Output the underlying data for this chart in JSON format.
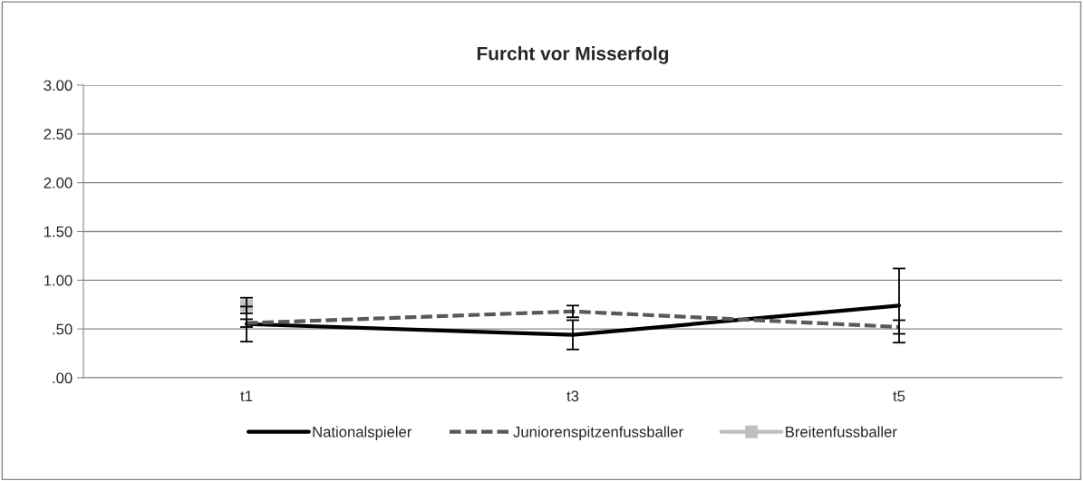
{
  "chart_data": {
    "type": "line",
    "title": "Furcht vor Misserfolg",
    "categories": [
      "t1",
      "t3",
      "t5"
    ],
    "series": [
      {
        "name": "Nationalspieler",
        "color": "#000000",
        "line_style": "solid",
        "marker": "none",
        "values": [
          0.55,
          0.44,
          0.74
        ],
        "errors": [
          0.18,
          0.15,
          0.38
        ]
      },
      {
        "name": "Juniorenspitzenfussballer",
        "color": "#595959",
        "line_style": "dashed",
        "marker": "none",
        "values": [
          0.56,
          0.68,
          0.52
        ],
        "errors": [
          0.04,
          0.06,
          0.07
        ]
      },
      {
        "name": "Breitenfussballer",
        "color": "#bfbfbf",
        "line_style": "solid",
        "marker": "square",
        "values": [
          0.74,
          null,
          null
        ],
        "errors": [
          0.08,
          null,
          null
        ]
      }
    ],
    "ylim": [
      0,
      3
    ],
    "yticks": [
      {
        "value": 0,
        "label": ".00"
      },
      {
        "value": 0.5,
        "label": ".50"
      },
      {
        "value": 1,
        "label": "1.00"
      },
      {
        "value": 1.5,
        "label": "1.50"
      },
      {
        "value": 2,
        "label": "2.00"
      },
      {
        "value": 2.5,
        "label": "2.50"
      },
      {
        "value": 3,
        "label": "3.00"
      }
    ],
    "grid": "y",
    "legend": "bottom"
  }
}
